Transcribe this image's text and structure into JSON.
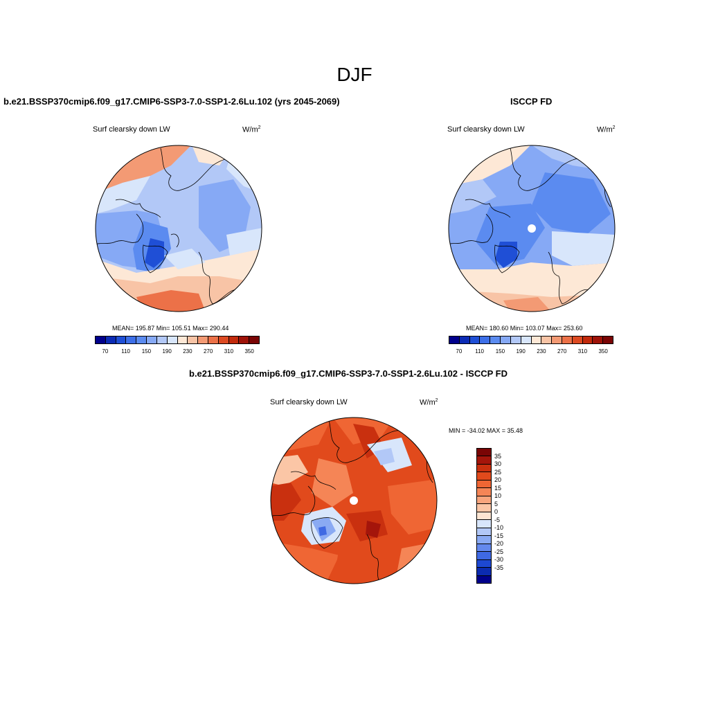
{
  "figure": {
    "season": "DJF"
  },
  "panels": {
    "model": {
      "title": "b.e21.BSSP370cmip6.f09_g17.CMIP6-SSP3-7.0-SSP1-2.6Lu.102 (yrs 2045-2069)",
      "variable": "Surf clearsky down LW",
      "units_base": "W/m",
      "units_exp": "2",
      "stats": "MEAN= 195.87  Min= 105.51  Max= 290.44"
    },
    "obs": {
      "title": "ISCCP FD",
      "variable": "Surf clearsky down LW",
      "units_base": "W/m",
      "units_exp": "2",
      "stats": "MEAN= 180.60  Min= 103.07  Max= 253.60"
    },
    "diff": {
      "title": "b.e21.BSSP370cmip6.f09_g17.CMIP6-SSP3-7.0-SSP1-2.6Lu.102 - ISCCP FD",
      "variable": "Surf clearsky down LW",
      "units_base": "W/m",
      "units_exp": "2",
      "stats": "MIN = -34.02 MAX =  35.48"
    }
  },
  "colorbars": {
    "absolute": {
      "colors": [
        "#00008b",
        "#0b2bb5",
        "#1f4fd6",
        "#3d6fe8",
        "#5b8bf0",
        "#86a9f5",
        "#b2c8f7",
        "#d8e6fb",
        "#fde8d6",
        "#f8c4a6",
        "#f39a74",
        "#ec7148",
        "#dd4a22",
        "#c22a0c",
        "#9e1208",
        "#7a0505"
      ],
      "ticks": [
        "70",
        "110",
        "150",
        "190",
        "230",
        "270",
        "310",
        "350"
      ]
    },
    "difference": {
      "colors": [
        "#7a0505",
        "#a4150b",
        "#c9300f",
        "#e14a1c",
        "#ef6634",
        "#f58556",
        "#f8a57d",
        "#fbc6a6",
        "#fde5d2",
        "#d8e6fb",
        "#b2c8f7",
        "#8aaaf3",
        "#6489ed",
        "#3f69e3",
        "#1d48d2",
        "#0b2bb0",
        "#00008b"
      ],
      "ticks": [
        "35",
        "30",
        "25",
        "20",
        "15",
        "10",
        "5",
        "0",
        "-5",
        "-10",
        "-15",
        "-20",
        "-25",
        "-30",
        "-35"
      ]
    }
  },
  "chart_data": [
    {
      "type": "heatmap",
      "title": "b.e21.BSSP370cmip6.f09_g17.CMIP6-SSP3-7.0-SSP1-2.6Lu.102 (yrs 2045-2069)",
      "variable": "Surf clearsky down LW",
      "units": "W/m2",
      "projection": "north polar stereographic",
      "mean": 195.87,
      "min": 105.51,
      "max": 290.44,
      "levels": [
        70,
        110,
        150,
        190,
        230,
        270,
        310,
        350
      ]
    },
    {
      "type": "heatmap",
      "title": "ISCCP FD",
      "variable": "Surf clearsky down LW",
      "units": "W/m2",
      "projection": "north polar stereographic",
      "mean": 180.6,
      "min": 103.07,
      "max": 253.6,
      "levels": [
        70,
        110,
        150,
        190,
        230,
        270,
        310,
        350
      ]
    },
    {
      "type": "heatmap",
      "title": "b.e21.BSSP370cmip6.f09_g17.CMIP6-SSP3-7.0-SSP1-2.6Lu.102 - ISCCP FD",
      "variable": "Surf clearsky down LW",
      "units": "W/m2",
      "projection": "north polar stereographic",
      "min": -34.02,
      "max": 35.48,
      "levels": [
        -35,
        -30,
        -25,
        -20,
        -15,
        -10,
        -5,
        0,
        5,
        10,
        15,
        20,
        25,
        30,
        35
      ]
    }
  ]
}
